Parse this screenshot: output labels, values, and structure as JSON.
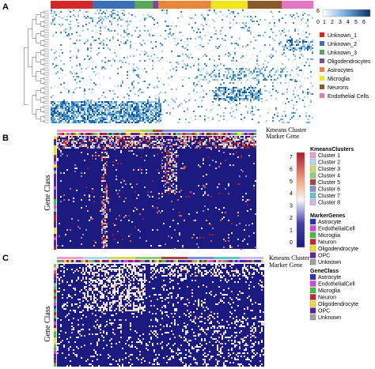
{
  "chart_data": [
    {
      "panel": "A",
      "type": "heatmap",
      "color_scale": {
        "ticks": [
          "6",
          "0",
          "1",
          "2",
          "3",
          "4",
          "5",
          "6"
        ],
        "low_color": "#ffffff",
        "high_color": "#08306b"
      },
      "top_annotation_colors": [
        "#d62728",
        "#3b6fb6",
        "#5aa65a",
        "#7b4a9a",
        "#e8863a",
        "#f2e41d",
        "#8b5a2b",
        "#e377c2"
      ],
      "legend": [
        {
          "label": "Unknown_1",
          "color": "#d62728"
        },
        {
          "label": "Unknown_2",
          "color": "#3b6fb6"
        },
        {
          "label": "Unknown_3",
          "color": "#5aa65a"
        },
        {
          "label": "Oligodendrocytes",
          "color": "#7b4a9a"
        },
        {
          "label": "Astrocytes",
          "color": "#e8863a"
        },
        {
          "label": "Microglia",
          "color": "#f2e41d"
        },
        {
          "label": "Neurons",
          "color": "#8b5a2b"
        },
        {
          "label": "Endothelial Cells",
          "color": "#e377c2"
        }
      ]
    },
    {
      "panel": "B",
      "type": "heatmap",
      "annotation_labels": [
        "Kmeans Cluster",
        "Marker Gene"
      ],
      "row_label": "Gene Class",
      "color_scale": {
        "ticks": [
          "7",
          "6",
          "5",
          "4",
          "3",
          "2",
          "1",
          "0"
        ],
        "low_color": "#1a1a80",
        "high_color": "#b2182b"
      },
      "legend_groups": [
        {
          "title": "KmeansClusters",
          "items": [
            {
              "label": "Cluster 1",
              "color": "#f0a0c8"
            },
            {
              "label": "Cluster 2",
              "color": "#b0d8f0"
            },
            {
              "label": "Cluster 3",
              "color": "#d8d860"
            },
            {
              "label": "Cluster 4",
              "color": "#90d070"
            },
            {
              "label": "Cluster 5",
              "color": "#a04848"
            },
            {
              "label": "Cluster 6",
              "color": "#8090d8"
            },
            {
              "label": "Cluster 7",
              "color": "#60c8c8"
            },
            {
              "label": "Cluster 8",
              "color": "#d0b8f0"
            }
          ]
        },
        {
          "title": "MarkerGenes",
          "items": [
            {
              "label": "Astrocyte",
              "color": "#3030c0"
            },
            {
              "label": "EndothelialCell",
              "color": "#e040e0"
            },
            {
              "label": "Microglia",
              "color": "#40c040"
            },
            {
              "label": "Neuron",
              "color": "#d02020"
            },
            {
              "label": "Oligodendrocyte",
              "color": "#f0e020"
            },
            {
              "label": "OPC",
              "color": "#6020a0"
            },
            {
              "label": "Unknown",
              "color": "#a0a0a0"
            }
          ]
        }
      ]
    },
    {
      "panel": "C",
      "type": "heatmap",
      "annotation_labels": [
        "Kmeans Cluster",
        "Marker Gene"
      ],
      "row_label": "Gene Class",
      "legend_groups": [
        {
          "title": "GeneClass",
          "items": [
            {
              "label": "Astrocyte",
              "color": "#3030c0"
            },
            {
              "label": "EndothelialCell",
              "color": "#e040e0"
            },
            {
              "label": "Microglia",
              "color": "#40c040"
            },
            {
              "label": "Neuron",
              "color": "#d02020"
            },
            {
              "label": "Oligodendrocyte",
              "color": "#f0e020"
            },
            {
              "label": "OPC",
              "color": "#6020a0"
            },
            {
              "label": "Unknown",
              "color": "#a0a0a0"
            }
          ]
        }
      ]
    }
  ],
  "panel_labels": [
    "A",
    "B",
    "C"
  ]
}
